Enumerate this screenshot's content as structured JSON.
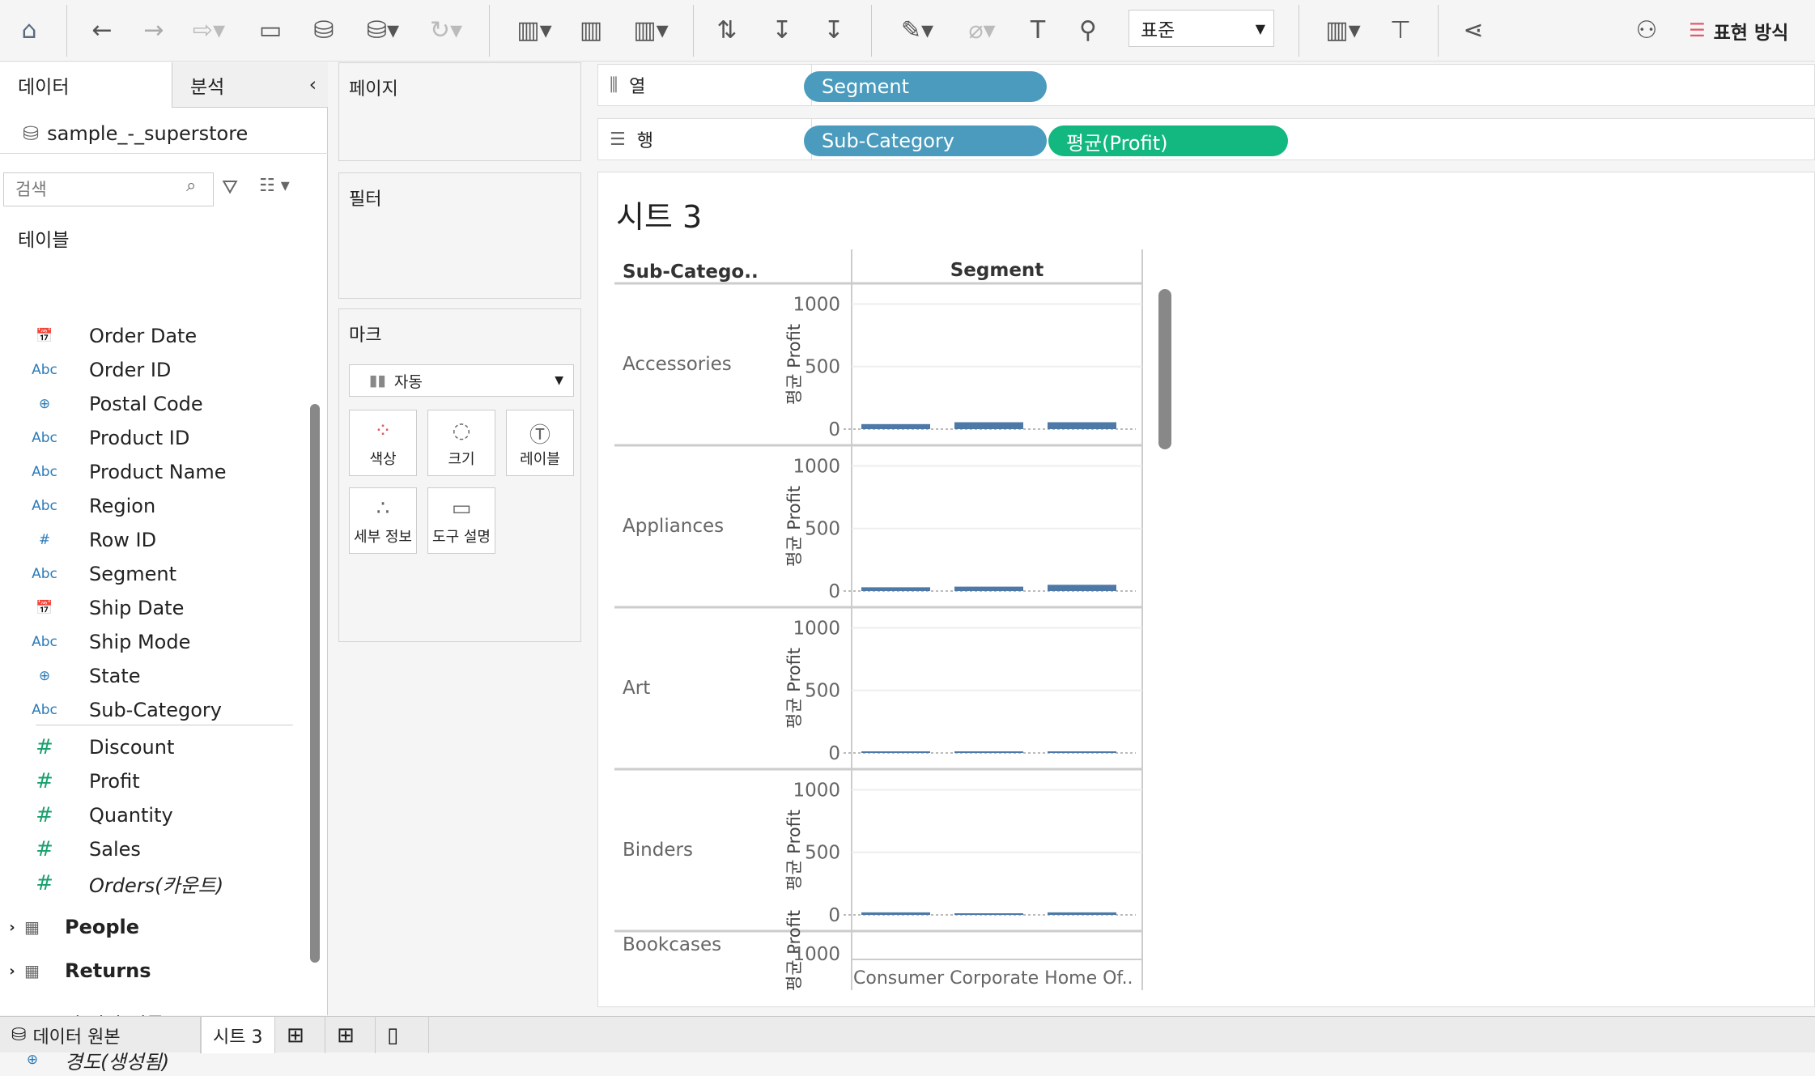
{
  "toolbar": {
    "items": [
      "home-icon",
      "undo-icon",
      "redo-icon",
      "replay-icon",
      "save-icon",
      "new-datasource-icon",
      "pause-updates-icon",
      "refresh-icon",
      "new-worksheet-icon",
      "duplicate-sheet-icon",
      "clear-sheet-icon",
      "swap-icon",
      "sort-asc-icon",
      "sort-desc-icon",
      "highlight-icon",
      "group-icon",
      "label-icon",
      "pin-icon"
    ],
    "fit_value": "표준",
    "show_me_label": "표현 방식"
  },
  "left": {
    "tab_data": "데이터",
    "tab_analysis": "분석",
    "datasource": "sample_-_superstore",
    "search_placeholder": "검색",
    "tables_header": "테이블",
    "dimensions": [
      {
        "type": "date",
        "name": "Order Date"
      },
      {
        "type": "Abc",
        "name": "Order ID"
      },
      {
        "type": "geo",
        "name": "Postal Code"
      },
      {
        "type": "Abc",
        "name": "Product ID"
      },
      {
        "type": "Abc",
        "name": "Product Name"
      },
      {
        "type": "Abc",
        "name": "Region"
      },
      {
        "type": "#",
        "name": "Row ID"
      },
      {
        "type": "Abc",
        "name": "Segment"
      },
      {
        "type": "date",
        "name": "Ship Date"
      },
      {
        "type": "Abc",
        "name": "Ship Mode"
      },
      {
        "type": "geo",
        "name": "State"
      },
      {
        "type": "Abc",
        "name": "Sub-Category"
      }
    ],
    "measures": [
      "Discount",
      "Profit",
      "Quantity",
      "Sales",
      "Orders(카운트)"
    ],
    "tables": [
      "People",
      "Returns"
    ],
    "extra": [
      {
        "type": "Abc",
        "name": "측정값 이름"
      },
      {
        "type": "geo",
        "name": "경도(생성됨)"
      }
    ]
  },
  "cards": {
    "pages": "페이지",
    "filters": "필터",
    "marks": "마크",
    "mark_type": "자동",
    "buttons": [
      "색상",
      "크기",
      "레이블",
      "세부 정보",
      "도구 설명"
    ]
  },
  "shelves": {
    "columns_label": "열",
    "rows_label": "행",
    "columns": [
      "Segment"
    ],
    "rows": [
      "Sub-Category",
      "평균(Profit)"
    ]
  },
  "colors": {
    "dimension_pill": "#4a9bbd",
    "measure_pill": "#12b87f",
    "bar": "#4e79a7"
  },
  "sheet": {
    "title": "시트 3"
  },
  "chart_data": {
    "type": "bar",
    "row_header": "Sub-Catego..",
    "column_header": "Segment",
    "ylabel": "평균 Profit",
    "yticks": [
      0,
      500,
      1000
    ],
    "ylim": [
      0,
      1100
    ],
    "categories": [
      "Consumer",
      "Corporate",
      "Home Office"
    ],
    "footer_label": "Consumer Corporate Home Of..",
    "rows": [
      {
        "name": "Accessories",
        "values": [
          40,
          55,
          55
        ]
      },
      {
        "name": "Appliances",
        "values": [
          30,
          35,
          50
        ]
      },
      {
        "name": "Art",
        "values": [
          8,
          8,
          8
        ]
      },
      {
        "name": "Binders",
        "values": [
          20,
          10,
          20
        ]
      },
      {
        "name": "Bookcases",
        "values": []
      }
    ]
  },
  "bottom": {
    "datasource_tab": "데이터 원본",
    "sheet_tab": "시트 3"
  }
}
